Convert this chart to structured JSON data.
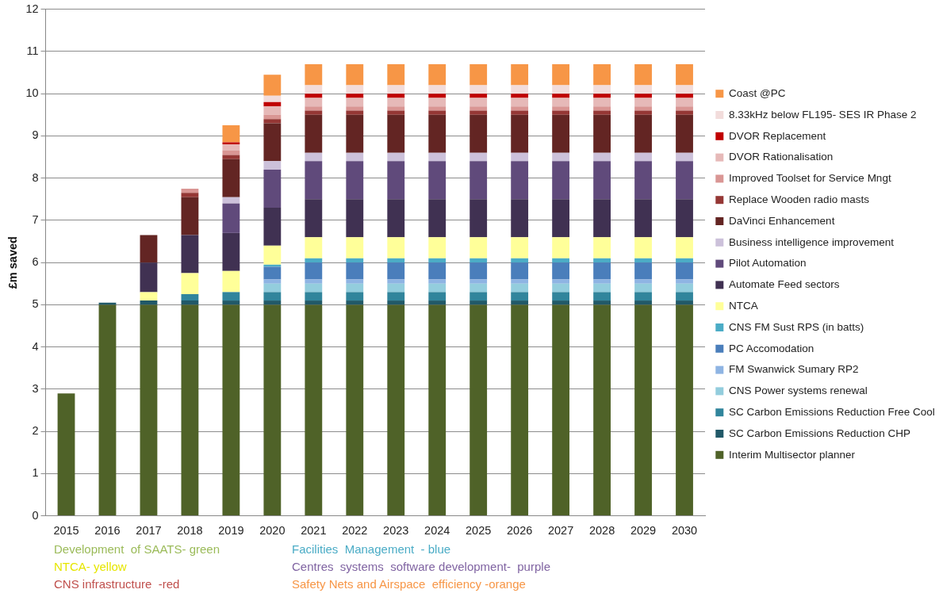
{
  "chart_data": {
    "type": "bar",
    "stacked": true,
    "ylabel": "£m saved",
    "categories": [
      "2015",
      "2016",
      "2017",
      "2018",
      "2019",
      "2020",
      "2021",
      "2022",
      "2023",
      "2024",
      "2025",
      "2026",
      "2027",
      "2028",
      "2029",
      "2030"
    ],
    "ylim": [
      0,
      12
    ],
    "yticks": [
      0,
      1,
      2,
      3,
      4,
      5,
      6,
      7,
      8,
      9,
      10,
      11,
      12
    ],
    "grid": "y",
    "legend": "right",
    "annotations": [
      "Development  of SAATS- green",
      "Facilities  Management  - blue",
      "NTCA- yellow",
      "Centres  systems  software development-  purple",
      "CNS infrastructure  -red",
      "Safety Nets and Airspace  efficiency -orange"
    ],
    "series": [
      {
        "name": "Interim Multisector planner",
        "color": "#4f6228",
        "values": [
          2.9,
          5,
          5,
          5,
          5,
          5,
          5,
          5,
          5,
          5,
          5,
          5,
          5,
          5,
          5,
          5
        ]
      },
      {
        "name": "SC Carbon Emissions Reduction CHP",
        "color": "#215968",
        "values": [
          null,
          0.05,
          0.1,
          0.1,
          0.1,
          0.1,
          0.1,
          0.1,
          0.1,
          0.1,
          0.1,
          0.1,
          0.1,
          0.1,
          0.1,
          0.1
        ]
      },
      {
        "name": "SC Carbon Emissions Reduction Free Cool",
        "color": "#31859c",
        "values": [
          null,
          null,
          null,
          0.15,
          0.2,
          0.2,
          0.2,
          0.2,
          0.2,
          0.2,
          0.2,
          0.2,
          0.2,
          0.2,
          0.2,
          0.2
        ]
      },
      {
        "name": "CNS Power systems renewal",
        "color": "#93cddd",
        "values": [
          null,
          null,
          null,
          null,
          null,
          0.2,
          0.2,
          0.2,
          0.2,
          0.2,
          0.2,
          0.2,
          0.2,
          0.2,
          0.2,
          0.2
        ]
      },
      {
        "name": "FM Swanwick Sumary RP2",
        "color": "#8eb4e3",
        "values": [
          null,
          null,
          null,
          null,
          null,
          0.1,
          0.1,
          0.1,
          0.1,
          0.1,
          0.1,
          0.1,
          0.1,
          0.1,
          0.1,
          0.1
        ]
      },
      {
        "name": "PC Accomodation",
        "color": "#4a7ebb",
        "values": [
          null,
          null,
          null,
          null,
          null,
          0.3,
          0.4,
          0.4,
          0.4,
          0.4,
          0.4,
          0.4,
          0.4,
          0.4,
          0.4,
          0.4
        ]
      },
      {
        "name": "CNS FM Sust RPS (in batts)",
        "color": "#4bacc6",
        "values": [
          null,
          null,
          null,
          null,
          null,
          0.05,
          0.1,
          0.1,
          0.1,
          0.1,
          0.1,
          0.1,
          0.1,
          0.1,
          0.1,
          0.1
        ]
      },
      {
        "name": "NTCA",
        "color": "#ffff99",
        "values": [
          null,
          null,
          0.2,
          0.5,
          0.5,
          0.45,
          0.5,
          0.5,
          0.5,
          0.5,
          0.5,
          0.5,
          0.5,
          0.5,
          0.5,
          0.5
        ]
      },
      {
        "name": "Automate Feed sectors",
        "color": "#403152",
        "values": [
          null,
          null,
          0.7,
          0.9,
          0.9,
          0.9,
          0.9,
          0.9,
          0.9,
          0.9,
          0.9,
          0.9,
          0.9,
          0.9,
          0.9,
          0.9
        ]
      },
      {
        "name": "Pilot Automation",
        "color": "#604a7b",
        "values": [
          null,
          null,
          null,
          null,
          0.7,
          0.9,
          0.9,
          0.9,
          0.9,
          0.9,
          0.9,
          0.9,
          0.9,
          0.9,
          0.9,
          0.9
        ]
      },
      {
        "name": "Business intelligence improvement",
        "color": "#ccc1da",
        "values": [
          null,
          null,
          null,
          null,
          0.15,
          0.2,
          0.2,
          0.2,
          0.2,
          0.2,
          0.2,
          0.2,
          0.2,
          0.2,
          0.2,
          0.2
        ]
      },
      {
        "name": "DaVinci Enhancement",
        "color": "#632523",
        "values": [
          null,
          null,
          0.65,
          0.9,
          0.9,
          0.9,
          0.9,
          0.9,
          0.9,
          0.9,
          0.9,
          0.9,
          0.9,
          0.9,
          0.9,
          0.9
        ]
      },
      {
        "name": "Replace Wooden radio masts",
        "color": "#953735",
        "values": [
          null,
          null,
          null,
          0.1,
          0.1,
          0.1,
          0.1,
          0.1,
          0.1,
          0.1,
          0.1,
          0.1,
          0.1,
          0.1,
          0.1,
          0.1
        ]
      },
      {
        "name": "Improved Toolset for Service Mngt",
        "color": "#d99694",
        "values": [
          null,
          null,
          null,
          0.1,
          0.1,
          0.1,
          0.1,
          0.1,
          0.1,
          0.1,
          0.1,
          0.1,
          0.1,
          0.1,
          0.1,
          0.1
        ]
      },
      {
        "name": "DVOR Rationalisation",
        "color": "#e6b9b8",
        "values": [
          null,
          null,
          null,
          null,
          0.15,
          0.2,
          0.2,
          0.2,
          0.2,
          0.2,
          0.2,
          0.2,
          0.2,
          0.2,
          0.2,
          0.2
        ]
      },
      {
        "name": "DVOR Replacement",
        "color": "#c00000",
        "values": [
          null,
          null,
          null,
          null,
          0.05,
          0.1,
          0.1,
          0.1,
          0.1,
          0.1,
          0.1,
          0.1,
          0.1,
          0.1,
          0.1,
          0.1
        ]
      },
      {
        "name": "8.33kHz below FL195- SES IR Phase 2",
        "color": "#f2dcdb",
        "values": [
          null,
          null,
          null,
          null,
          null,
          0.15,
          0.2,
          0.2,
          0.2,
          0.2,
          0.2,
          0.2,
          0.2,
          0.2,
          0.2,
          0.2
        ]
      },
      {
        "name": "Coast @PC",
        "color": "#f79646",
        "values": [
          null,
          null,
          null,
          null,
          0.4,
          0.5,
          0.5,
          0.5,
          0.5,
          0.5,
          0.5,
          0.5,
          0.5,
          0.5,
          0.5,
          0.5
        ]
      }
    ]
  }
}
